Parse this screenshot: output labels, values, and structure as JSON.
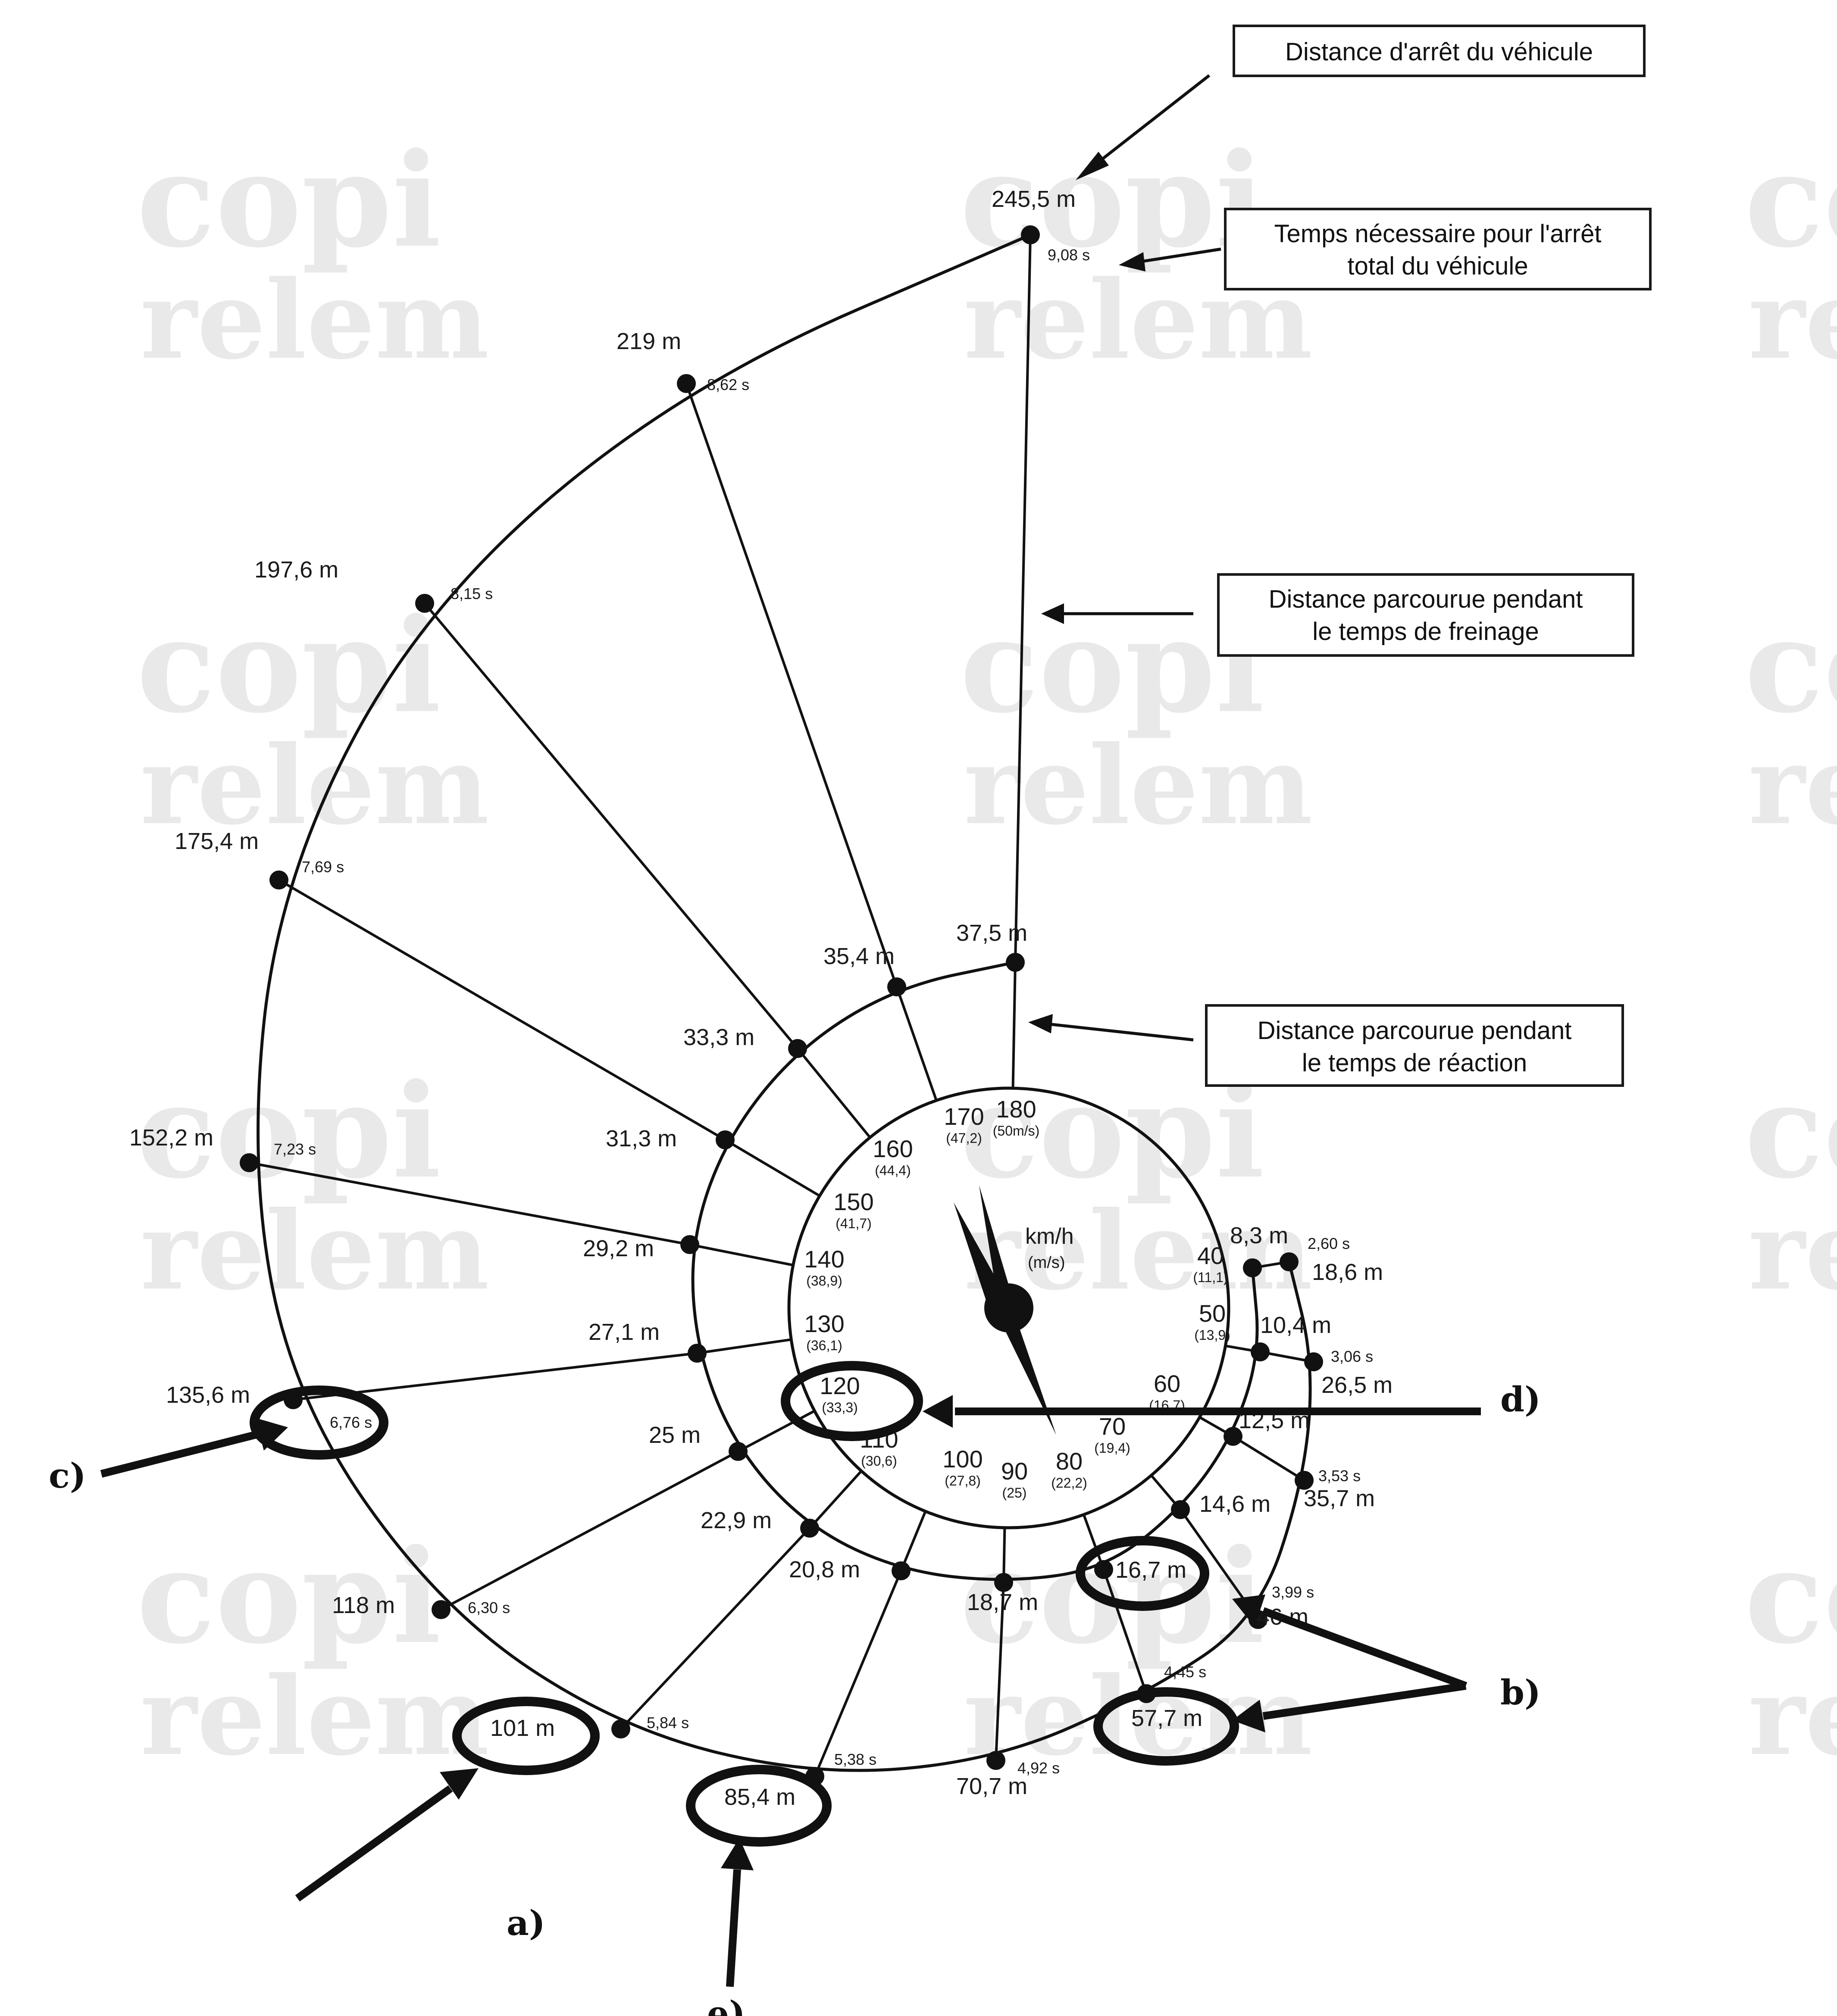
{
  "watermark": {
    "line1": "copi",
    "line2": "relem"
  },
  "dial": {
    "unit_label": "km/h",
    "unit_sub": "(m/s)",
    "speeds": [
      {
        "kmh": "40",
        "ms": "(11,1)"
      },
      {
        "kmh": "50",
        "ms": "(13,9)"
      },
      {
        "kmh": "60",
        "ms": "(16,7)"
      },
      {
        "kmh": "70",
        "ms": "(19,4)"
      },
      {
        "kmh": "80",
        "ms": "(22,2)"
      },
      {
        "kmh": "90",
        "ms": "(25)"
      },
      {
        "kmh": "100",
        "ms": "(27,8)"
      },
      {
        "kmh": "110",
        "ms": "(30,6)"
      },
      {
        "kmh": "120",
        "ms": "(33,3)"
      },
      {
        "kmh": "130",
        "ms": "(36,1)"
      },
      {
        "kmh": "140",
        "ms": "(38,9)"
      },
      {
        "kmh": "150",
        "ms": "(41,7)"
      },
      {
        "kmh": "160",
        "ms": "(44,4)"
      },
      {
        "kmh": "170",
        "ms": "(47,2)"
      },
      {
        "kmh": "180",
        "ms": "(50m/s)"
      }
    ]
  },
  "reaction_distances": [
    "8,3 m",
    "10,4 m",
    "12,5 m",
    "14,6 m",
    "16,7 m",
    "18,7 m",
    "20,8 m",
    "22,9 m",
    "25 m",
    "27,1 m",
    "29,2 m",
    "31,3 m",
    "33,3 m",
    "35,4 m",
    "37,5 m"
  ],
  "stopping_distances": [
    "18,6 m",
    "26,5 m",
    "35,7 m",
    "46 m",
    "57,7 m",
    "70,7 m",
    "85,4 m",
    "101 m",
    "118 m",
    "135,6 m",
    "152,2 m",
    "175,4 m",
    "197,6 m",
    "219 m",
    "245,5 m"
  ],
  "stopping_times": [
    "2,60 s",
    "3,06 s",
    "3,53 s",
    "3,99 s",
    "4,45 s",
    "4,92 s",
    "5,38 s",
    "5,84 s",
    "6,30 s",
    "6,76 s",
    "7,23 s",
    "7,69 s",
    "8,15 s",
    "8,62 s",
    "9,08 s"
  ],
  "legend_boxes": {
    "stop_distance": "Distance d'arrêt du véhicule",
    "stop_time_l1": "Temps nécessaire pour l'arrêt",
    "stop_time_l2": "total du véhicule",
    "brake_l1": "Distance parcourue pendant",
    "brake_l2": "le temps de freinage",
    "reaction_l1": "Distance parcourue pendant",
    "reaction_l2": "le temps de réaction"
  },
  "annotations": {
    "a": "a)",
    "b": "b)",
    "c": "c)",
    "d": "d)",
    "e": "e)"
  }
}
